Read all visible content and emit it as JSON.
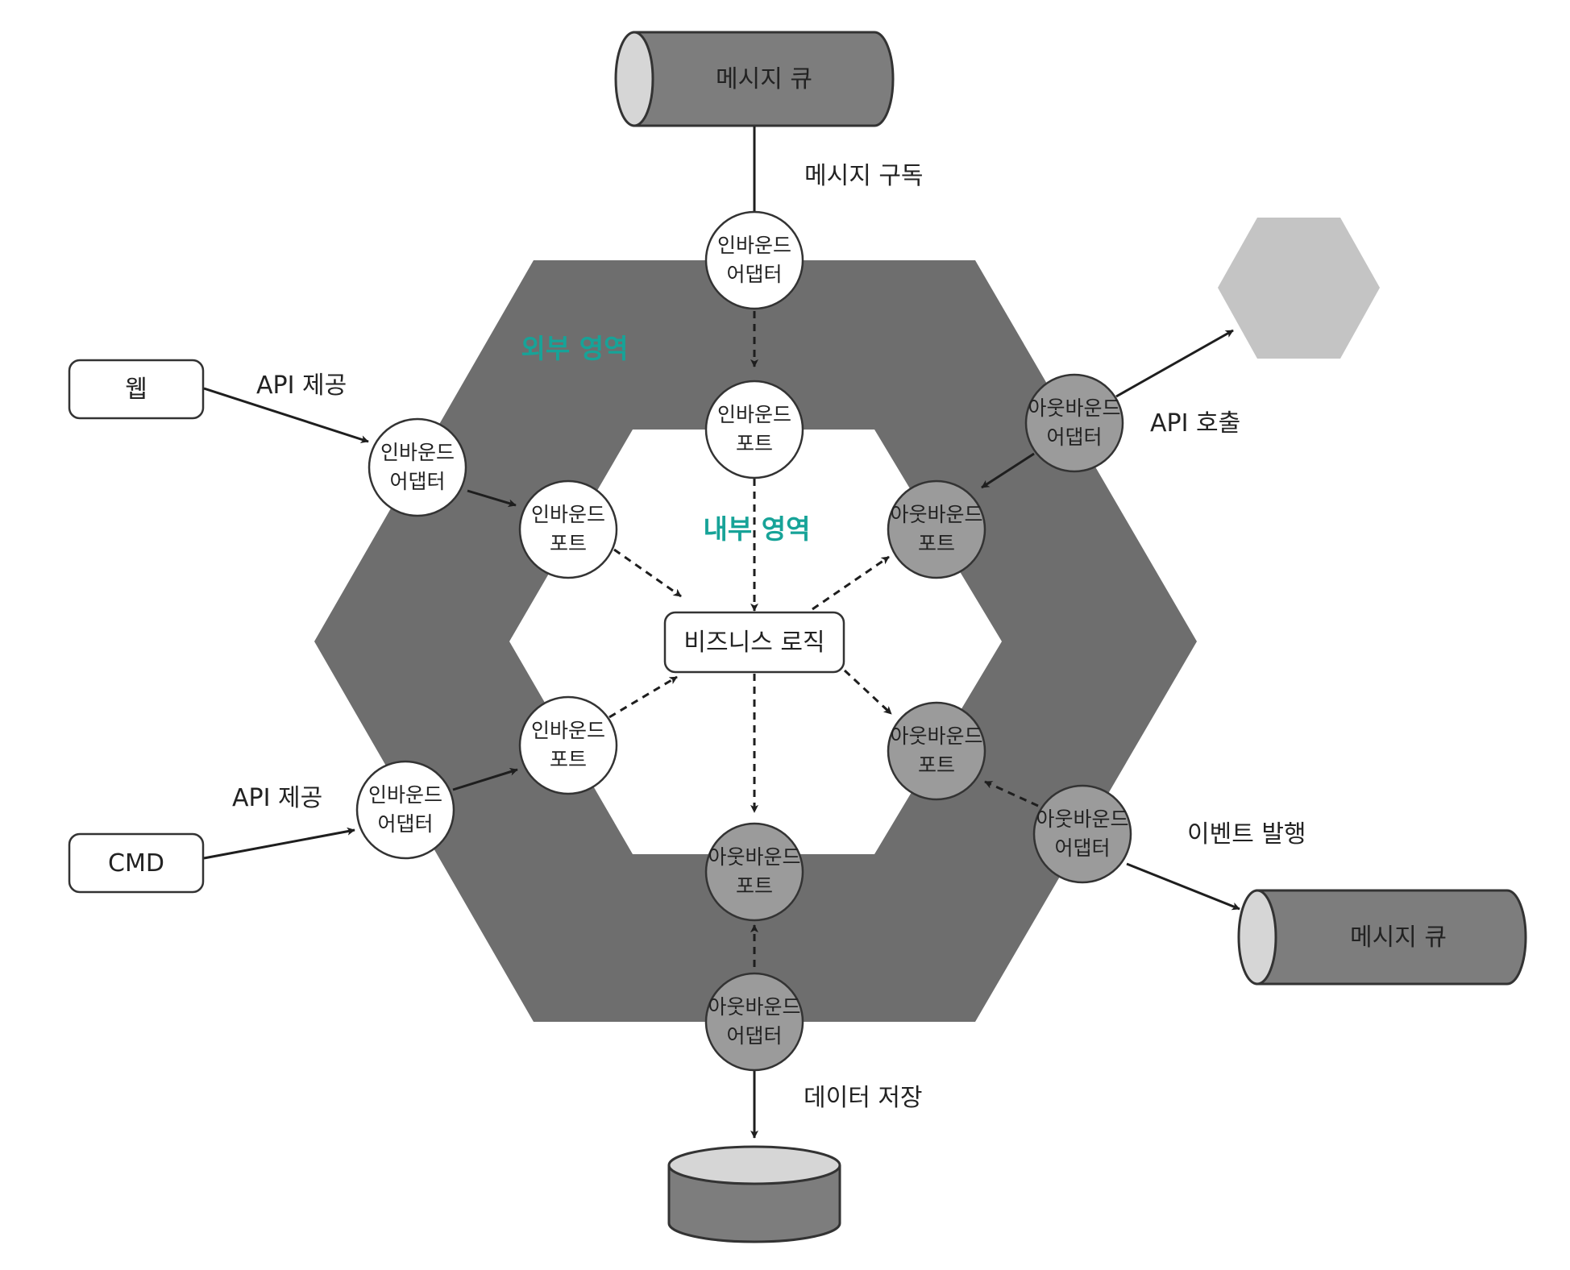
{
  "colors": {
    "outer_hexagon": "#6e6e6e",
    "inner_hexagon": "#ffffff",
    "inbound_node": "#ffffff",
    "outbound_node": "#9b9b9b",
    "cylinder": "#7d7d7d",
    "external_hexagon": "#c4c4c4",
    "zone_label": "#17a398"
  },
  "zones": {
    "outer": "외부 영역",
    "inner": "내부 영역"
  },
  "core": {
    "label": "비즈니스 로직"
  },
  "external": {
    "message_queue_top": "메시지 큐",
    "message_queue_right": "메시지 큐",
    "web": "웹",
    "cmd": "CMD",
    "external_service_icon": "hexagon-icon",
    "database_icon": "database-icon"
  },
  "edge_labels": {
    "subscribe": "메시지 구독",
    "api_provide_web": "API 제공",
    "api_provide_cmd": "API 제공",
    "api_call": "API 호출",
    "event_publish": "이벤트 발행",
    "data_store": "데이터 저장"
  },
  "nodes": {
    "inbound_adapter_top": {
      "line1": "인바운드",
      "line2": "어댑터"
    },
    "inbound_port_top": {
      "line1": "인바운드",
      "line2": "포트"
    },
    "inbound_adapter_web": {
      "line1": "인바운드",
      "line2": "어댑터"
    },
    "inbound_port_upper": {
      "line1": "인바운드",
      "line2": "포트"
    },
    "inbound_adapter_cmd": {
      "line1": "인바운드",
      "line2": "어댑터"
    },
    "inbound_port_lower": {
      "line1": "인바운드",
      "line2": "포트"
    },
    "outbound_adapter_api": {
      "line1": "아웃바운드",
      "line2": "어댑터"
    },
    "outbound_port_upper": {
      "line1": "아웃바운드",
      "line2": "포트"
    },
    "outbound_port_lower": {
      "line1": "아웃바운드",
      "line2": "포트"
    },
    "outbound_adapter_event": {
      "line1": "아웃바운드",
      "line2": "어댑터"
    },
    "outbound_port_bottom": {
      "line1": "아웃바운드",
      "line2": "포트"
    },
    "outbound_adapter_db": {
      "line1": "아웃바운드",
      "line2": "어댑터"
    }
  }
}
